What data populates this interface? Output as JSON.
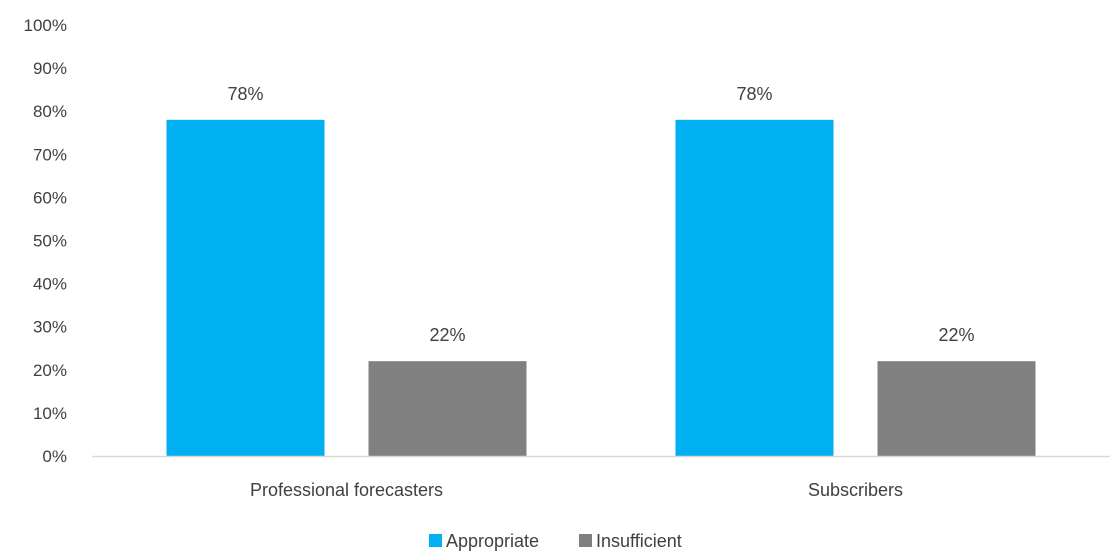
{
  "chart_data": {
    "type": "bar",
    "categories": [
      "Professional forecasters",
      "Subscribers"
    ],
    "series": [
      {
        "name": "Appropriate",
        "values": [
          78,
          78
        ],
        "color": "#00B0F0"
      },
      {
        "name": "Insufficient",
        "values": [
          22,
          22
        ],
        "color": "#808080"
      }
    ],
    "data_labels": [
      [
        "78%",
        "78%"
      ],
      [
        "22%",
        "22%"
      ]
    ],
    "ylim": [
      0,
      100
    ],
    "yticks": [
      "0%",
      "10%",
      "20%",
      "30%",
      "40%",
      "50%",
      "60%",
      "70%",
      "80%",
      "90%",
      "100%"
    ],
    "grid": false,
    "legend_position": "bottom",
    "axis_color": "#D9D9D9",
    "text_color": "#404040"
  }
}
